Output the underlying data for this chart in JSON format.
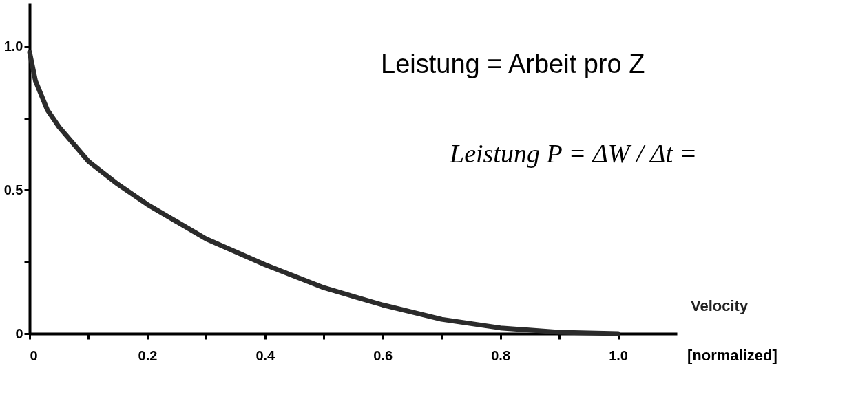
{
  "chart_data": {
    "type": "line",
    "x": [
      0,
      0.01,
      0.03,
      0.05,
      0.1,
      0.15,
      0.2,
      0.3,
      0.4,
      0.5,
      0.6,
      0.7,
      0.8,
      0.9,
      1.0
    ],
    "series": [
      {
        "color": "#2b2b2b",
        "values": [
          0.98,
          0.88,
          0.78,
          0.72,
          0.6,
          0.52,
          0.45,
          0.33,
          0.24,
          0.16,
          0.1,
          0.05,
          0.02,
          0.005,
          0
        ]
      }
    ],
    "xlabel": "Velocity",
    "annotations": [
      "[normalized]",
      "Leistung = Arbeit pro Z",
      "Leistung P = ΔW / Δt ="
    ],
    "xlim": [
      0,
      1.1
    ],
    "ylim": [
      0,
      1.15
    ],
    "xticks": [
      0,
      {
        "value": 0.1,
        "label": null
      },
      0.2,
      {
        "value": 0.3,
        "label": null
      },
      0.4,
      {
        "value": 0.5,
        "label": null
      },
      0.6,
      {
        "value": 0.7,
        "label": null
      },
      0.8,
      {
        "value": 0.9,
        "label": null
      },
      {
        "value": 1.0,
        "label": "1.0"
      }
    ],
    "yticks": [
      0,
      {
        "value": 0.25,
        "label": null
      },
      0.5,
      {
        "value": 0.75,
        "label": null
      },
      {
        "value": 1.0,
        "label": "1.0"
      }
    ],
    "grid": false,
    "line_style": "solid"
  }
}
